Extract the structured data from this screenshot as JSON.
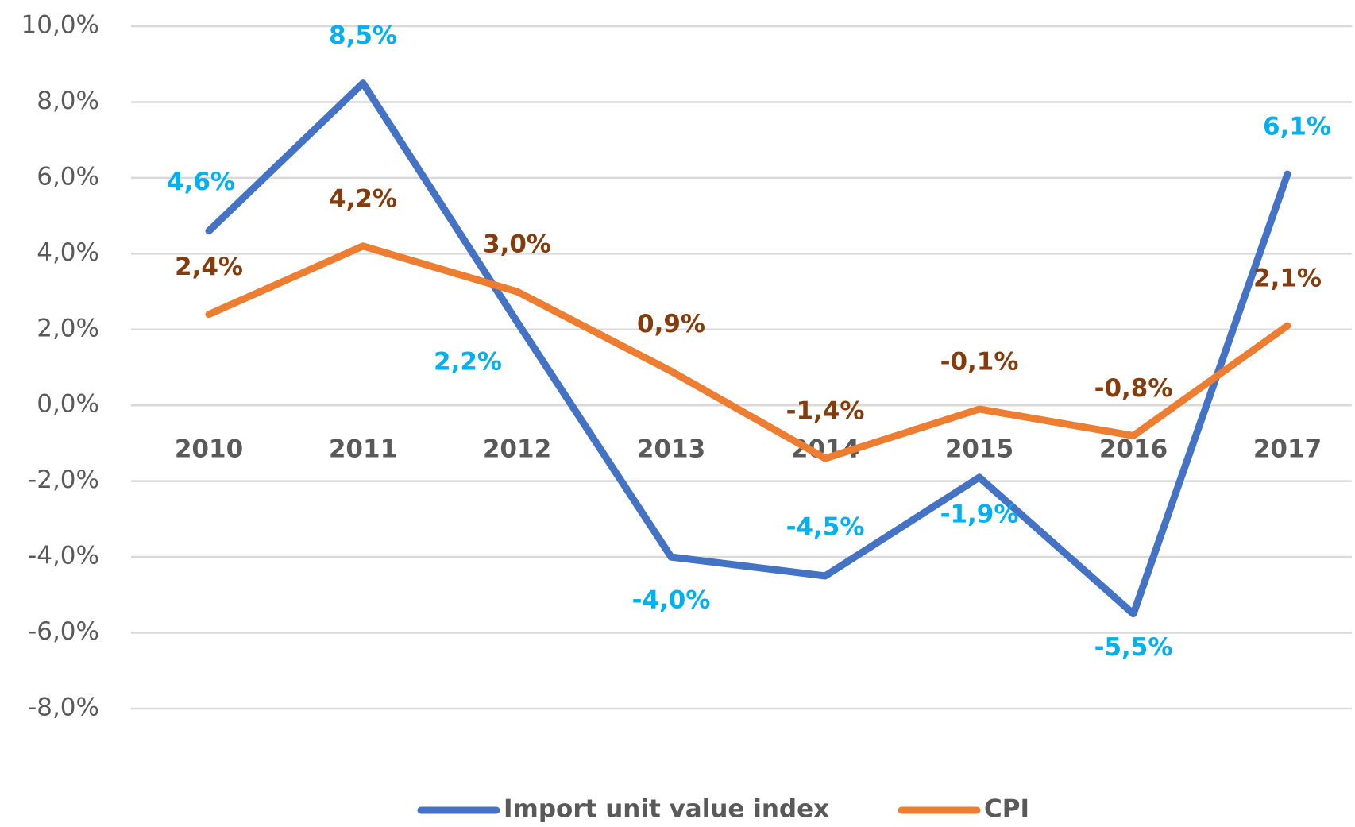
{
  "chart_data": {
    "type": "line",
    "categories": [
      "2010",
      "2011",
      "2012",
      "2013",
      "2014",
      "2015",
      "2016",
      "2017"
    ],
    "series": [
      {
        "name": "Import unit value index",
        "color": "#4472c4",
        "label_color": "#00b0f0",
        "values": [
          4.6,
          8.5,
          2.2,
          -4.0,
          -4.5,
          -1.9,
          -5.5,
          6.1
        ],
        "value_labels": [
          "4,6%",
          "8,5%",
          "2,2%",
          "-4,0%",
          "-4,5%",
          "-1,9%",
          "-5,5%",
          "6,1%"
        ]
      },
      {
        "name": "CPI",
        "color": "#ed7d31",
        "label_color": "#843c0c",
        "values": [
          2.4,
          4.2,
          3.0,
          0.9,
          -1.4,
          -0.1,
          -0.8,
          2.1
        ],
        "value_labels": [
          "2,4%",
          "4,2%",
          "3,0%",
          "0,9%",
          "-1,4%",
          "-0,1%",
          "-0,8%",
          "2,1%"
        ]
      }
    ],
    "ylim": [
      -8,
      10
    ],
    "yticks": [
      {
        "value": -8,
        "label": "-8,0%"
      },
      {
        "value": -6,
        "label": "-6,0%"
      },
      {
        "value": -4,
        "label": "-4,0%"
      },
      {
        "value": -2,
        "label": "-2,0%"
      },
      {
        "value": 0,
        "label": "0,0%"
      },
      {
        "value": 2,
        "label": "2,0%"
      },
      {
        "value": 4,
        "label": "4,0%"
      },
      {
        "value": 6,
        "label": "6,0%"
      },
      {
        "value": 8,
        "label": "8,0%"
      },
      {
        "value": 10,
        "label": "10,0%"
      }
    ],
    "grid": true,
    "legend": "bottom"
  }
}
